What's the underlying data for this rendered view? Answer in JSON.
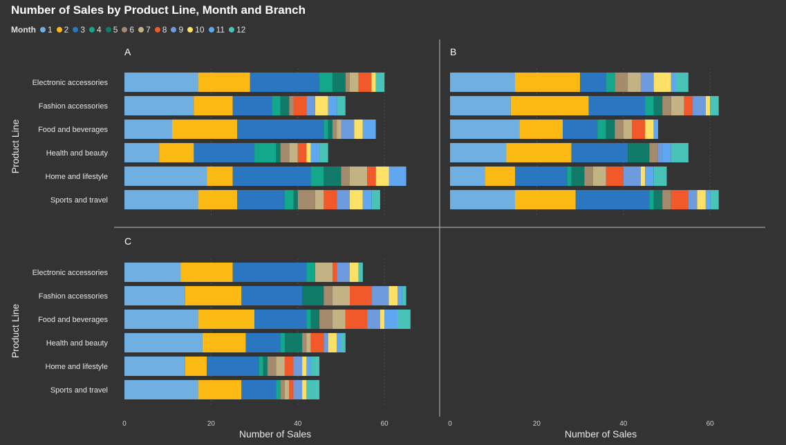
{
  "title": "Number of Sales by Product Line, Month and Branch",
  "legend": {
    "title": "Month",
    "items": [
      {
        "label": "1",
        "color": "#6FAFE1"
      },
      {
        "label": "2",
        "color": "#FDB913"
      },
      {
        "label": "3",
        "color": "#2A76C0"
      },
      {
        "label": "4",
        "color": "#13A88C"
      },
      {
        "label": "5",
        "color": "#117B6A"
      },
      {
        "label": "6",
        "color": "#A48B6E"
      },
      {
        "label": "7",
        "color": "#C3B284"
      },
      {
        "label": "8",
        "color": "#F1592A"
      },
      {
        "label": "9",
        "color": "#6E9BDE"
      },
      {
        "label": "10",
        "color": "#FCE166"
      },
      {
        "label": "11",
        "color": "#5FA7F1"
      },
      {
        "label": "12",
        "color": "#49C2B8"
      }
    ]
  },
  "axis": {
    "ylabel": "Product Line",
    "xlabel": "Number of Sales",
    "xticks": [
      "0",
      "20",
      "40",
      "60"
    ]
  },
  "chart_data": {
    "type": "bar",
    "orientation": "horizontal",
    "stacked": true,
    "xlim": [
      0,
      75
    ],
    "categories": [
      "Electronic accessories",
      "Fashion accessories",
      "Food and beverages",
      "Health and beauty",
      "Home and lifestyle",
      "Sports and travel"
    ],
    "series_order": [
      "1",
      "2",
      "3",
      "4",
      "5",
      "6",
      "7",
      "8",
      "9",
      "10",
      "11",
      "12"
    ],
    "panels": [
      {
        "label": "A",
        "values": [
          [
            17,
            12,
            16,
            3,
            3,
            1,
            2,
            3,
            0,
            1,
            0,
            2
          ],
          [
            16,
            9,
            9,
            2,
            2,
            1,
            0,
            3,
            2,
            3,
            2,
            2
          ],
          [
            11,
            15,
            20,
            1,
            1,
            1,
            1,
            0,
            3,
            2,
            3,
            0
          ],
          [
            8,
            8,
            14,
            5,
            1,
            2,
            2,
            2,
            0,
            1,
            2,
            2
          ],
          [
            19,
            6,
            18,
            3,
            4,
            2,
            4,
            2,
            0,
            3,
            4,
            0
          ],
          [
            17,
            9,
            11,
            2,
            1,
            4,
            2,
            3,
            3,
            3,
            2,
            2
          ]
        ]
      },
      {
        "label": "B",
        "values": [
          [
            15,
            15,
            6,
            2,
            0,
            3,
            3,
            0,
            3,
            4,
            1,
            3
          ],
          [
            14,
            18,
            13,
            2,
            2,
            2,
            3,
            2,
            3,
            1,
            0,
            2
          ],
          [
            16,
            10,
            8,
            2,
            2,
            2,
            2,
            3,
            0,
            2,
            1,
            0
          ],
          [
            13,
            15,
            13,
            0,
            5,
            2,
            0,
            0,
            1,
            0,
            2,
            4
          ],
          [
            8,
            7,
            12,
            1,
            3,
            2,
            3,
            4,
            4,
            1,
            2,
            3
          ],
          [
            15,
            14,
            17,
            1,
            2,
            2,
            0,
            4,
            2,
            2,
            1,
            2
          ]
        ]
      },
      {
        "label": "C",
        "values": [
          [
            13,
            12,
            17,
            2,
            0,
            0,
            4,
            1,
            3,
            2,
            0,
            1
          ],
          [
            14,
            13,
            14,
            0,
            5,
            2,
            4,
            5,
            4,
            2,
            1,
            1
          ],
          [
            17,
            13,
            12,
            1,
            2,
            3,
            3,
            5,
            3,
            1,
            3,
            3
          ],
          [
            18,
            10,
            8,
            1,
            4,
            1,
            1,
            3,
            1,
            2,
            1,
            1
          ],
          [
            14,
            5,
            12,
            1,
            1,
            2,
            2,
            2,
            2,
            1,
            1,
            2
          ],
          [
            17,
            10,
            8,
            1,
            0,
            1,
            1,
            1,
            2,
            1,
            0,
            3
          ]
        ]
      }
    ]
  }
}
